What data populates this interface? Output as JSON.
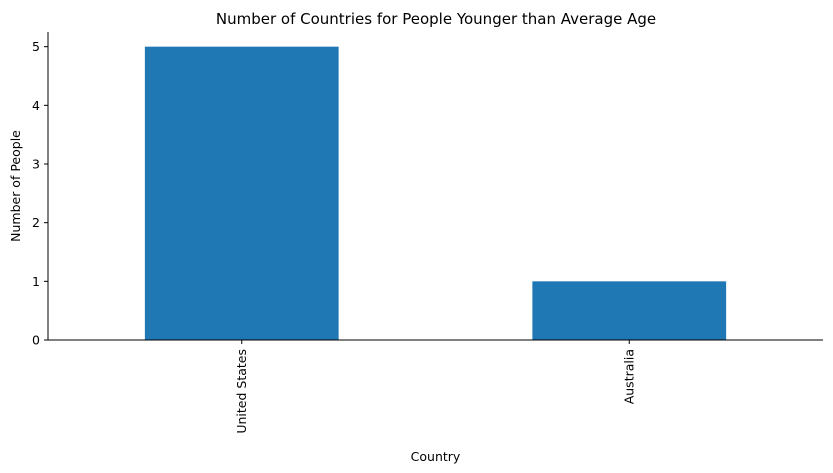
{
  "chart_data": {
    "type": "bar",
    "title": "Number of Countries for People Younger than Average Age",
    "xlabel": "Country",
    "ylabel": "Number of People",
    "categories": [
      "United States",
      "Australia"
    ],
    "values": [
      5,
      1
    ],
    "ylim": [
      0,
      5.25
    ],
    "yticks": [
      0,
      1,
      2,
      3,
      4,
      5
    ],
    "bar_color": "#1f77b4",
    "grid": false,
    "legend": "none",
    "x_tick_rotation": "vertical"
  }
}
